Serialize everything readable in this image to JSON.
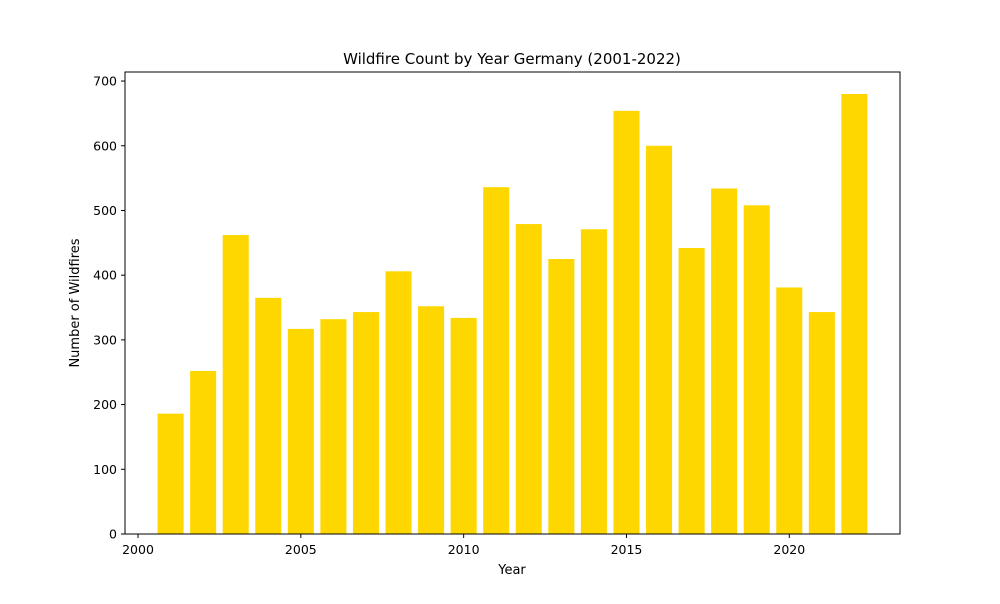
{
  "chart_data": {
    "type": "bar",
    "title": "Wildfire Count by Year Germany (2001-2022)",
    "xlabel": "Year",
    "ylabel": "Number of Wildfires",
    "x": [
      2001,
      2002,
      2003,
      2004,
      2005,
      2006,
      2007,
      2008,
      2009,
      2010,
      2011,
      2012,
      2013,
      2014,
      2015,
      2016,
      2017,
      2018,
      2019,
      2020,
      2021,
      2022
    ],
    "values": [
      186,
      252,
      462,
      365,
      317,
      332,
      343,
      406,
      352,
      334,
      536,
      479,
      425,
      471,
      654,
      600,
      442,
      534,
      508,
      381,
      343,
      680
    ],
    "xlim": [
      1999.6,
      2023.4
    ],
    "ylim": [
      0,
      714
    ],
    "xticks": [
      2000,
      2005,
      2010,
      2015,
      2020
    ],
    "yticks": [
      0,
      100,
      200,
      300,
      400,
      500,
      600,
      700
    ],
    "bar_color": "#ffd700",
    "grid": false,
    "legend": "none"
  }
}
